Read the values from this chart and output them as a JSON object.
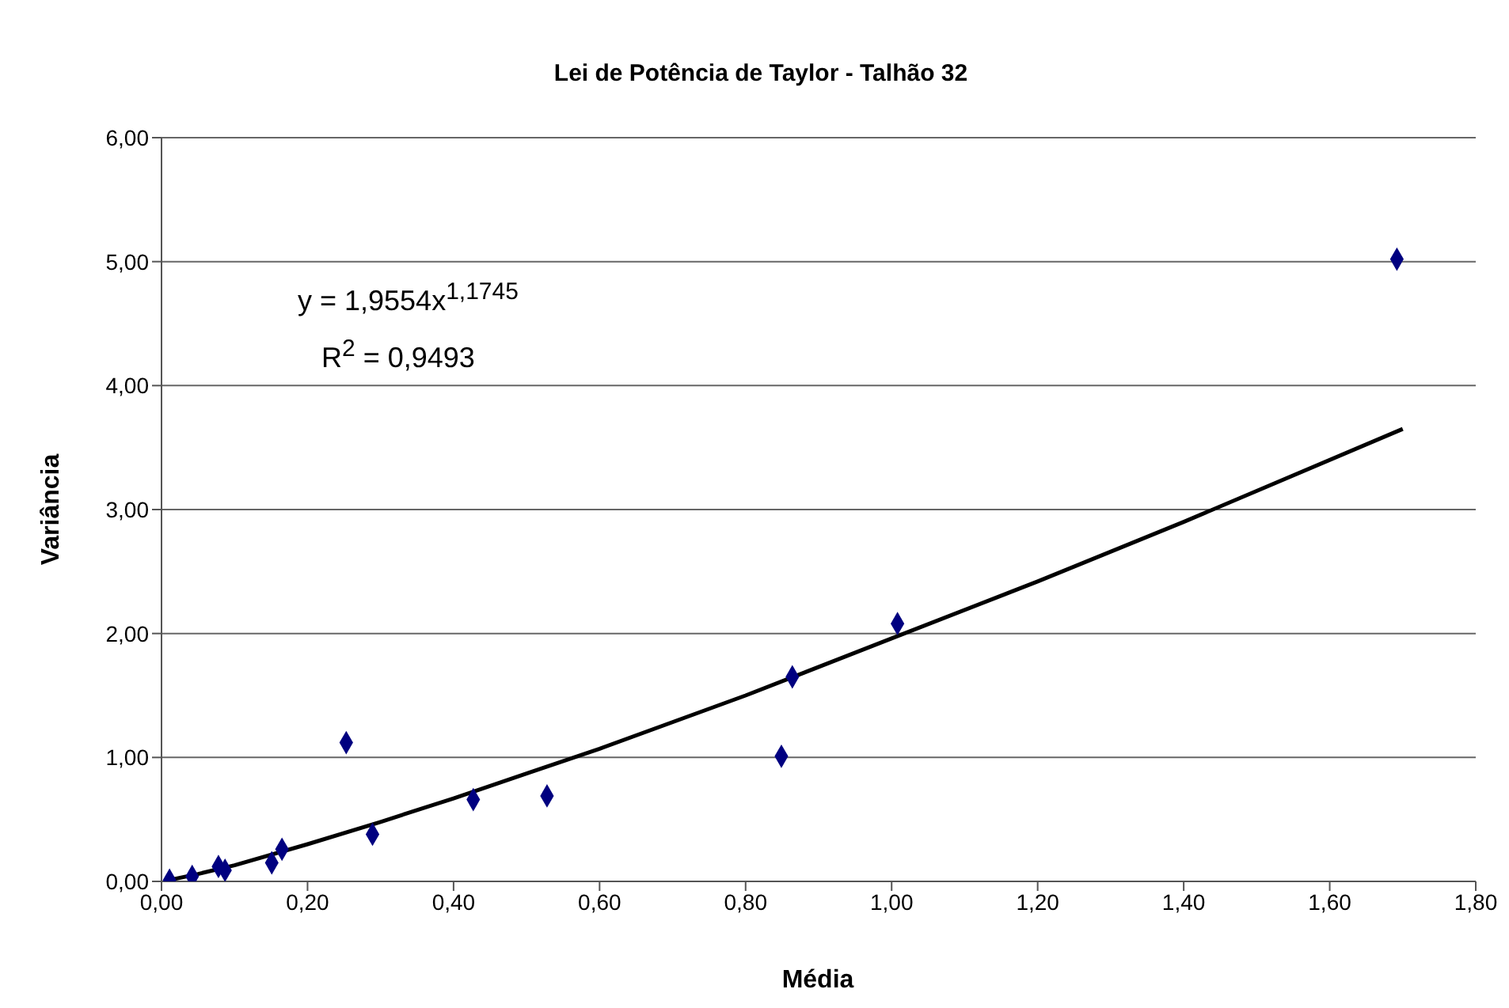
{
  "chart_data": {
    "type": "scatter",
    "title": "Lei de Potência de Taylor - Talhão 32",
    "xlabel": "Média",
    "ylabel": "Variância",
    "annotations": [
      "y = 1,9554x$^{1,1745}$",
      "R$^{2}$ = 0,9493"
    ],
    "xlim": [
      0,
      1.8
    ],
    "xticks": [
      {
        "value": 0,
        "label": "0,00"
      },
      {
        "value": 0.2,
        "label": "0,20"
      },
      {
        "value": 0.4,
        "label": "0,40"
      },
      {
        "value": 0.6,
        "label": "0,60"
      },
      {
        "value": 0.8,
        "label": "0,80"
      },
      {
        "value": 1,
        "label": "1,00"
      },
      {
        "value": 1.2,
        "label": "1,20"
      },
      {
        "value": 1.4,
        "label": "1,40"
      },
      {
        "value": 1.6,
        "label": "1,60"
      },
      {
        "value": 1.8,
        "label": "1,80"
      }
    ],
    "ylim": [
      0,
      6
    ],
    "yticks": [
      {
        "value": 0,
        "label": "0,00"
      },
      {
        "value": 1,
        "label": "1,00"
      },
      {
        "value": 2,
        "label": "2,00"
      },
      {
        "value": 3,
        "label": "3,00"
      },
      {
        "value": 4,
        "label": "4,00"
      },
      {
        "value": 5,
        "label": "5,00"
      },
      {
        "value": 6,
        "label": "6,00"
      }
    ],
    "grid": "y",
    "series": [
      {
        "marker": "diamond",
        "color": "#000080",
        "x": [
          0.011,
          0.042,
          0.078,
          0.087,
          0.151,
          0.165,
          0.253,
          0.289,
          0.427,
          0.528,
          0.849,
          0.864,
          1.008,
          1.692
        ],
        "values": [
          0.01,
          0.04,
          0.12,
          0.09,
          0.15,
          0.26,
          1.12,
          0.38,
          0.66,
          0.69,
          1.01,
          1.65,
          2.08,
          5.02
        ]
      },
      {
        "type": "line",
        "marker": "none",
        "line_style": "solid",
        "color": "#000000",
        "x": [
          0.01,
          0.05,
          0.1,
          0.2,
          0.3,
          0.4,
          0.5,
          0.6,
          0.8,
          1.0,
          1.2,
          1.4,
          1.7
        ],
        "values": [
          0.01,
          0.06,
          0.13,
          0.3,
          0.48,
          0.67,
          0.87,
          1.07,
          1.5,
          1.96,
          2.42,
          2.9,
          3.65
        ]
      }
    ]
  }
}
